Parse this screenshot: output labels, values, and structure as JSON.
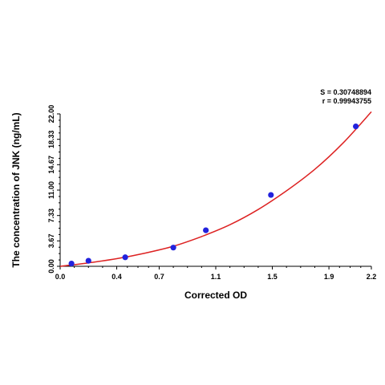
{
  "chart_data": {
    "type": "scatter",
    "title": "",
    "xlabel": "Corrected OD",
    "ylabel": "The concentration of JNK (ng/mL)",
    "xlim": [
      0.0,
      2.2
    ],
    "ylim": [
      0.0,
      22.0
    ],
    "x_ticks": [
      "0.0",
      "0.4",
      "0.7",
      "1.1",
      "1.5",
      "1.9",
      "2.2"
    ],
    "y_ticks": [
      "0.00",
      "3.67",
      "7.33",
      "11.00",
      "14.67",
      "18.33",
      "22.00"
    ],
    "stats": {
      "s_label": "S = 0.30748894",
      "r_label": "r = 0.99943755"
    },
    "grid": false,
    "points": {
      "x": [
        0.08,
        0.2,
        0.46,
        0.8,
        1.03,
        1.49,
        2.09
      ],
      "y": [
        0.4,
        0.8,
        1.3,
        2.7,
        5.2,
        10.3,
        20.2
      ]
    },
    "fit_curve": {
      "x": [
        0.0,
        0.2,
        0.4,
        0.6,
        0.8,
        1.0,
        1.2,
        1.4,
        1.6,
        1.8,
        2.0,
        2.2
      ],
      "y": [
        0.0,
        0.5,
        1.1,
        1.9,
        2.9,
        4.3,
        6.0,
        8.2,
        10.9,
        14.0,
        17.8,
        22.3
      ]
    },
    "colors": {
      "points": "#2222dd",
      "curve": "#dd2222",
      "axis": "#000000"
    }
  }
}
